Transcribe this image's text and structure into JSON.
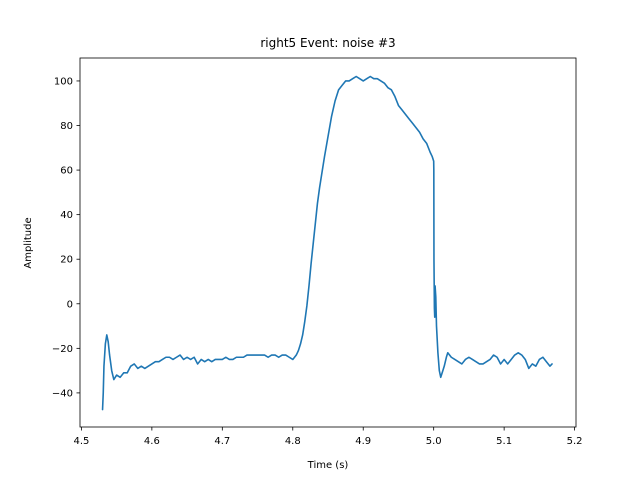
{
  "chart_data": {
    "type": "line",
    "title": "right5 Event: noise #3",
    "xlabel": "Time (s)",
    "ylabel": "Amplitude",
    "xlim": [
      4.498,
      5.202
    ],
    "ylim": [
      -55.3,
      110.3
    ],
    "xticks": [
      4.5,
      4.6,
      4.7,
      4.8,
      4.9,
      5.0,
      5.1,
      5.2
    ],
    "xtick_labels": [
      "4.5",
      "4.6",
      "4.7",
      "4.8",
      "4.9",
      "5.0",
      "5.1",
      "5.2"
    ],
    "yticks": [
      -40,
      -20,
      0,
      20,
      40,
      60,
      80,
      100
    ],
    "ytick_labels": [
      "−40",
      "−20",
      "0",
      "20",
      "40",
      "60",
      "80",
      "100"
    ],
    "grid": false,
    "series": [
      {
        "color": "#1f77b4",
        "x": [
          4.53,
          4.531,
          4.532,
          4.534,
          4.536,
          4.538,
          4.54,
          4.543,
          4.546,
          4.55,
          4.555,
          4.56,
          4.565,
          4.57,
          4.575,
          4.58,
          4.585,
          4.59,
          4.595,
          4.6,
          4.605,
          4.61,
          4.615,
          4.62,
          4.625,
          4.63,
          4.635,
          4.64,
          4.645,
          4.65,
          4.655,
          4.66,
          4.665,
          4.67,
          4.675,
          4.68,
          4.685,
          4.69,
          4.695,
          4.7,
          4.705,
          4.71,
          4.715,
          4.72,
          4.725,
          4.73,
          4.735,
          4.74,
          4.745,
          4.75,
          4.755,
          4.76,
          4.765,
          4.77,
          4.775,
          4.78,
          4.785,
          4.79,
          4.795,
          4.8,
          4.805,
          4.808,
          4.811,
          4.814,
          4.817,
          4.82,
          4.823,
          4.826,
          4.829,
          4.832,
          4.835,
          4.838,
          4.841,
          4.845,
          4.85,
          4.855,
          4.86,
          4.865,
          4.87,
          4.875,
          4.88,
          4.885,
          4.89,
          4.895,
          4.9,
          4.905,
          4.91,
          4.915,
          4.92,
          4.925,
          4.93,
          4.935,
          4.94,
          4.945,
          4.95,
          4.955,
          4.96,
          4.965,
          4.97,
          4.975,
          4.98,
          4.985,
          4.99,
          4.995,
          4.998,
          5.0,
          5.0002,
          5.0004,
          5.001,
          5.0015,
          5.002,
          5.003,
          5.004,
          5.006,
          5.008,
          5.01,
          5.012,
          5.015,
          5.018,
          5.02,
          5.025,
          5.03,
          5.035,
          5.04,
          5.045,
          5.05,
          5.055,
          5.06,
          5.065,
          5.07,
          5.075,
          5.08,
          5.085,
          5.09,
          5.095,
          5.1,
          5.105,
          5.11,
          5.115,
          5.12,
          5.125,
          5.13,
          5.135,
          5.14,
          5.145,
          5.15,
          5.155,
          5.16,
          5.165,
          5.168
        ],
        "y": [
          -47.5,
          -40,
          -28,
          -18,
          -14,
          -17,
          -23,
          -30,
          -34,
          -32,
          -33,
          -31,
          -31,
          -28,
          -27,
          -29,
          -28,
          -29,
          -28,
          -27,
          -26,
          -26,
          -25,
          -24,
          -24,
          -25,
          -24,
          -23,
          -25,
          -24,
          -25,
          -24,
          -27,
          -25,
          -26,
          -25,
          -26,
          -25,
          -25,
          -25,
          -24,
          -25,
          -25,
          -24,
          -24,
          -24,
          -23,
          -23,
          -23,
          -23,
          -23,
          -23,
          -24,
          -23,
          -23,
          -24,
          -23,
          -23,
          -24,
          -25,
          -23,
          -21,
          -18,
          -14,
          -8,
          -1,
          8,
          18,
          27,
          36,
          45,
          52,
          58,
          66,
          75,
          84,
          91,
          96,
          98,
          100,
          100,
          101,
          102,
          101,
          100,
          101,
          102,
          101,
          101,
          100,
          99,
          97,
          96,
          93,
          89,
          87,
          85,
          83,
          81,
          79,
          77,
          74,
          72,
          68,
          66,
          64,
          60,
          20,
          -2,
          -6,
          8,
          3,
          -10,
          -22,
          -30,
          -33,
          -31,
          -28,
          -24,
          -22,
          -24,
          -25,
          -26,
          -27,
          -25,
          -24,
          -25,
          -26,
          -27,
          -27,
          -26,
          -25,
          -23,
          -24,
          -27,
          -25,
          -27,
          -25,
          -23,
          -22,
          -23,
          -25,
          -29,
          -27,
          -28,
          -25,
          -24,
          -26,
          -28,
          -27
        ]
      }
    ]
  }
}
